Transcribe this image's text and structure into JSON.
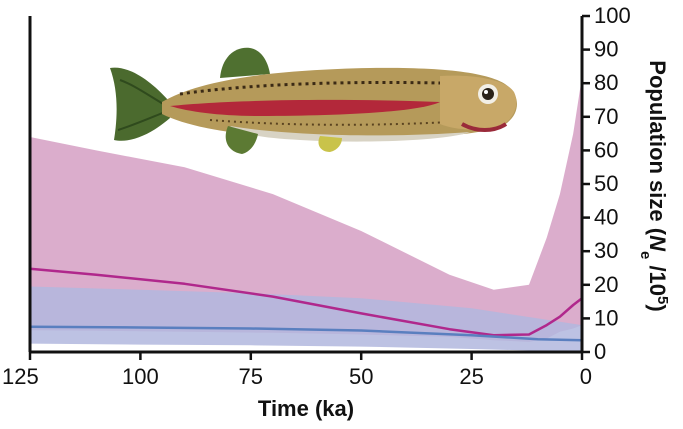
{
  "chart_data": {
    "type": "area",
    "xlabel": "Time (ka)",
    "ylabel_main": "Population size (",
    "ylabel_var": "N",
    "ylabel_sub": "e",
    "ylabel_div": " /10",
    "ylabel_sup": "5",
    "ylabel_close": ")",
    "xlim": [
      125,
      0
    ],
    "ylim": [
      0,
      100
    ],
    "x_ticks": [
      125,
      100,
      75,
      50,
      25,
      0
    ],
    "y_ticks": [
      0,
      10,
      20,
      30,
      40,
      50,
      60,
      70,
      80,
      90,
      100
    ],
    "y_axis_side": "right",
    "grid": false,
    "legend": "none",
    "series": [
      {
        "color": "#b0288c",
        "band_color": "#d9a9c9",
        "x": [
          125,
          110,
          90,
          70,
          50,
          30,
          20,
          12,
          8,
          5,
          2,
          0
        ],
        "mean": [
          24.8,
          23,
          20.3,
          16.5,
          11.5,
          6.8,
          5,
          5.2,
          8,
          10.5,
          14,
          16
        ],
        "upper": [
          64,
          60,
          55,
          47,
          36,
          23,
          18.5,
          20,
          34,
          47,
          65,
          82
        ],
        "lower": [
          6.5,
          6.3,
          6,
          5.7,
          5.2,
          4.5,
          3.5,
          3,
          4,
          6,
          7,
          8
        ]
      },
      {
        "color": "#5a7fbf",
        "band_color": "#b2b7de",
        "x": [
          125,
          100,
          75,
          50,
          25,
          10,
          0
        ],
        "mean": [
          7.5,
          7.3,
          7,
          6.4,
          5,
          3.8,
          3.5
        ],
        "upper": [
          19.5,
          18.5,
          17.5,
          16,
          13,
          10,
          8
        ],
        "lower": [
          2.5,
          2.2,
          2,
          1.6,
          0.9,
          0.4,
          0.2
        ]
      }
    ]
  },
  "image": {
    "name": "fish-photo",
    "colors": {
      "body": "#b59a5a",
      "stripe": "#b3283a",
      "fins": "#4b6a2e",
      "belly": "#d8d3c4"
    }
  }
}
